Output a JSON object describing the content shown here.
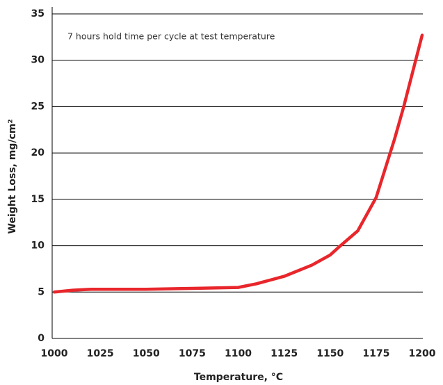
{
  "chart_data": {
    "type": "line",
    "annotation": "7 hours hold time per cycle at test temperature",
    "x_label": "Temperature, °C",
    "y_label": "Weight Loss, mg/cm²",
    "x": [
      1000,
      1010,
      1020,
      1050,
      1075,
      1100,
      1110,
      1125,
      1140,
      1150,
      1155,
      1165,
      1175,
      1185,
      1190,
      1200
    ],
    "series": [
      {
        "name": null,
        "color": "#e8262b",
        "values": [
          5.0,
          5.2,
          5.3,
          5.3,
          5.4,
          5.5,
          5.9,
          6.7,
          7.9,
          9.0,
          9.9,
          11.6,
          15.2,
          21.5,
          25.0,
          32.7
        ]
      }
    ],
    "xlim": [
      1000,
      1200
    ],
    "xticks": [
      1000,
      1025,
      1050,
      1075,
      1100,
      1125,
      1150,
      1175,
      1200
    ],
    "ylim": [
      0,
      35
    ],
    "yticks": [
      0,
      5,
      10,
      15,
      20,
      25,
      30,
      35
    ],
    "grid": true
  }
}
